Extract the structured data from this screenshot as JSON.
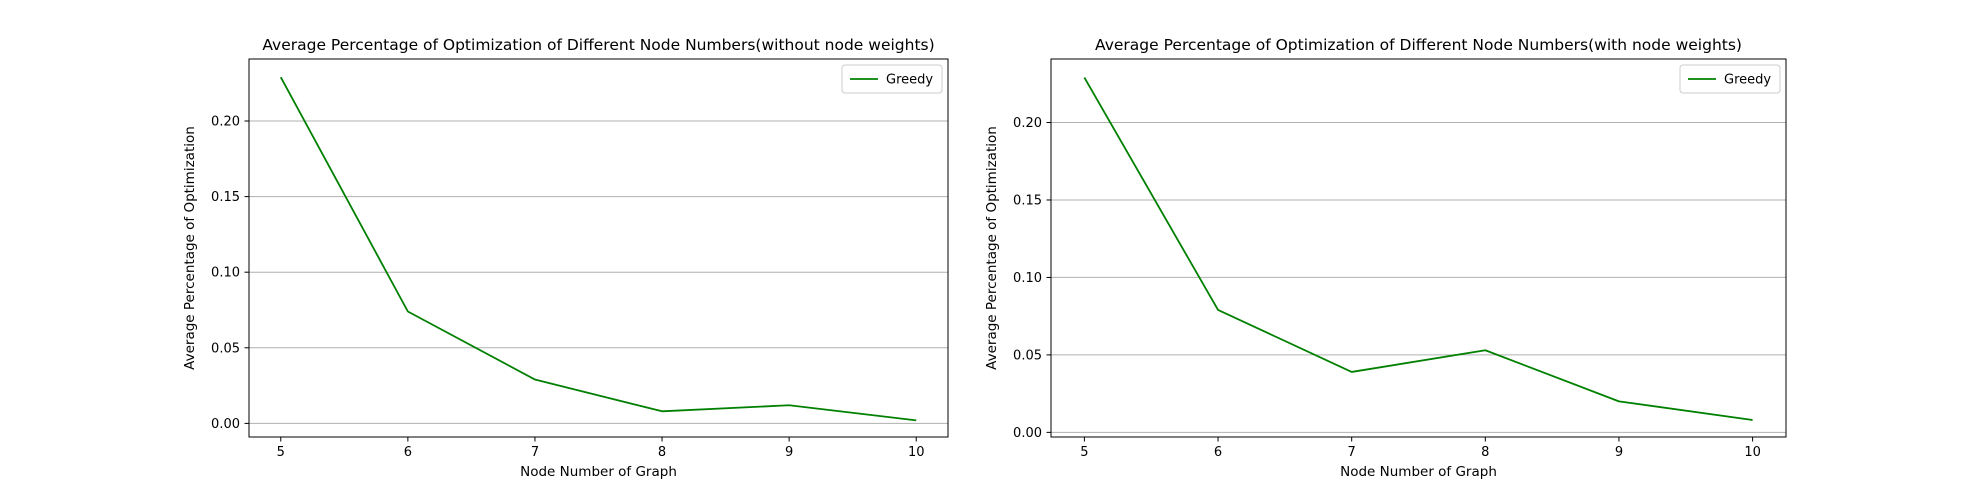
{
  "chart_data": [
    {
      "type": "line",
      "title": "Average Percentage of Optimization of Different Node Numbers(without node weights)",
      "xlabel": "Node Number of Graph",
      "ylabel": "Average Percentage of Optimization",
      "x": [
        5,
        6,
        7,
        8,
        9,
        10
      ],
      "xlim": [
        4.75,
        10.25
      ],
      "ylim": [
        -0.009,
        0.241
      ],
      "xticks": [
        "5",
        "6",
        "7",
        "8",
        "9",
        "10"
      ],
      "yticks": [
        0.0,
        0.05,
        0.1,
        0.15,
        0.2
      ],
      "ytick_labels": [
        "0.00",
        "0.05",
        "0.10",
        "0.15",
        "0.20"
      ],
      "grid": "y-major",
      "legend_position": "top-right",
      "series": [
        {
          "name": "Greedy",
          "color": "#008000",
          "values": [
            0.229,
            0.074,
            0.029,
            0.008,
            0.012,
            0.002
          ]
        }
      ]
    },
    {
      "type": "line",
      "title": "Average Percentage of Optimization of Different Node Numbers(with node weights)",
      "xlabel": "Node Number of Graph",
      "ylabel": "Average Percentage of Optimization",
      "x": [
        5,
        6,
        7,
        8,
        9,
        10
      ],
      "xlim": [
        4.75,
        10.25
      ],
      "ylim": [
        -0.003,
        0.241
      ],
      "xticks": [
        "5",
        "6",
        "7",
        "8",
        "9",
        "10"
      ],
      "yticks": [
        0.0,
        0.05,
        0.1,
        0.15,
        0.2
      ],
      "ytick_labels": [
        "0.00",
        "0.05",
        "0.10",
        "0.15",
        "0.20"
      ],
      "grid": "y-major",
      "legend_position": "top-right",
      "series": [
        {
          "name": "Greedy",
          "color": "#008000",
          "values": [
            0.229,
            0.079,
            0.039,
            0.053,
            0.02,
            0.008
          ]
        }
      ]
    }
  ]
}
